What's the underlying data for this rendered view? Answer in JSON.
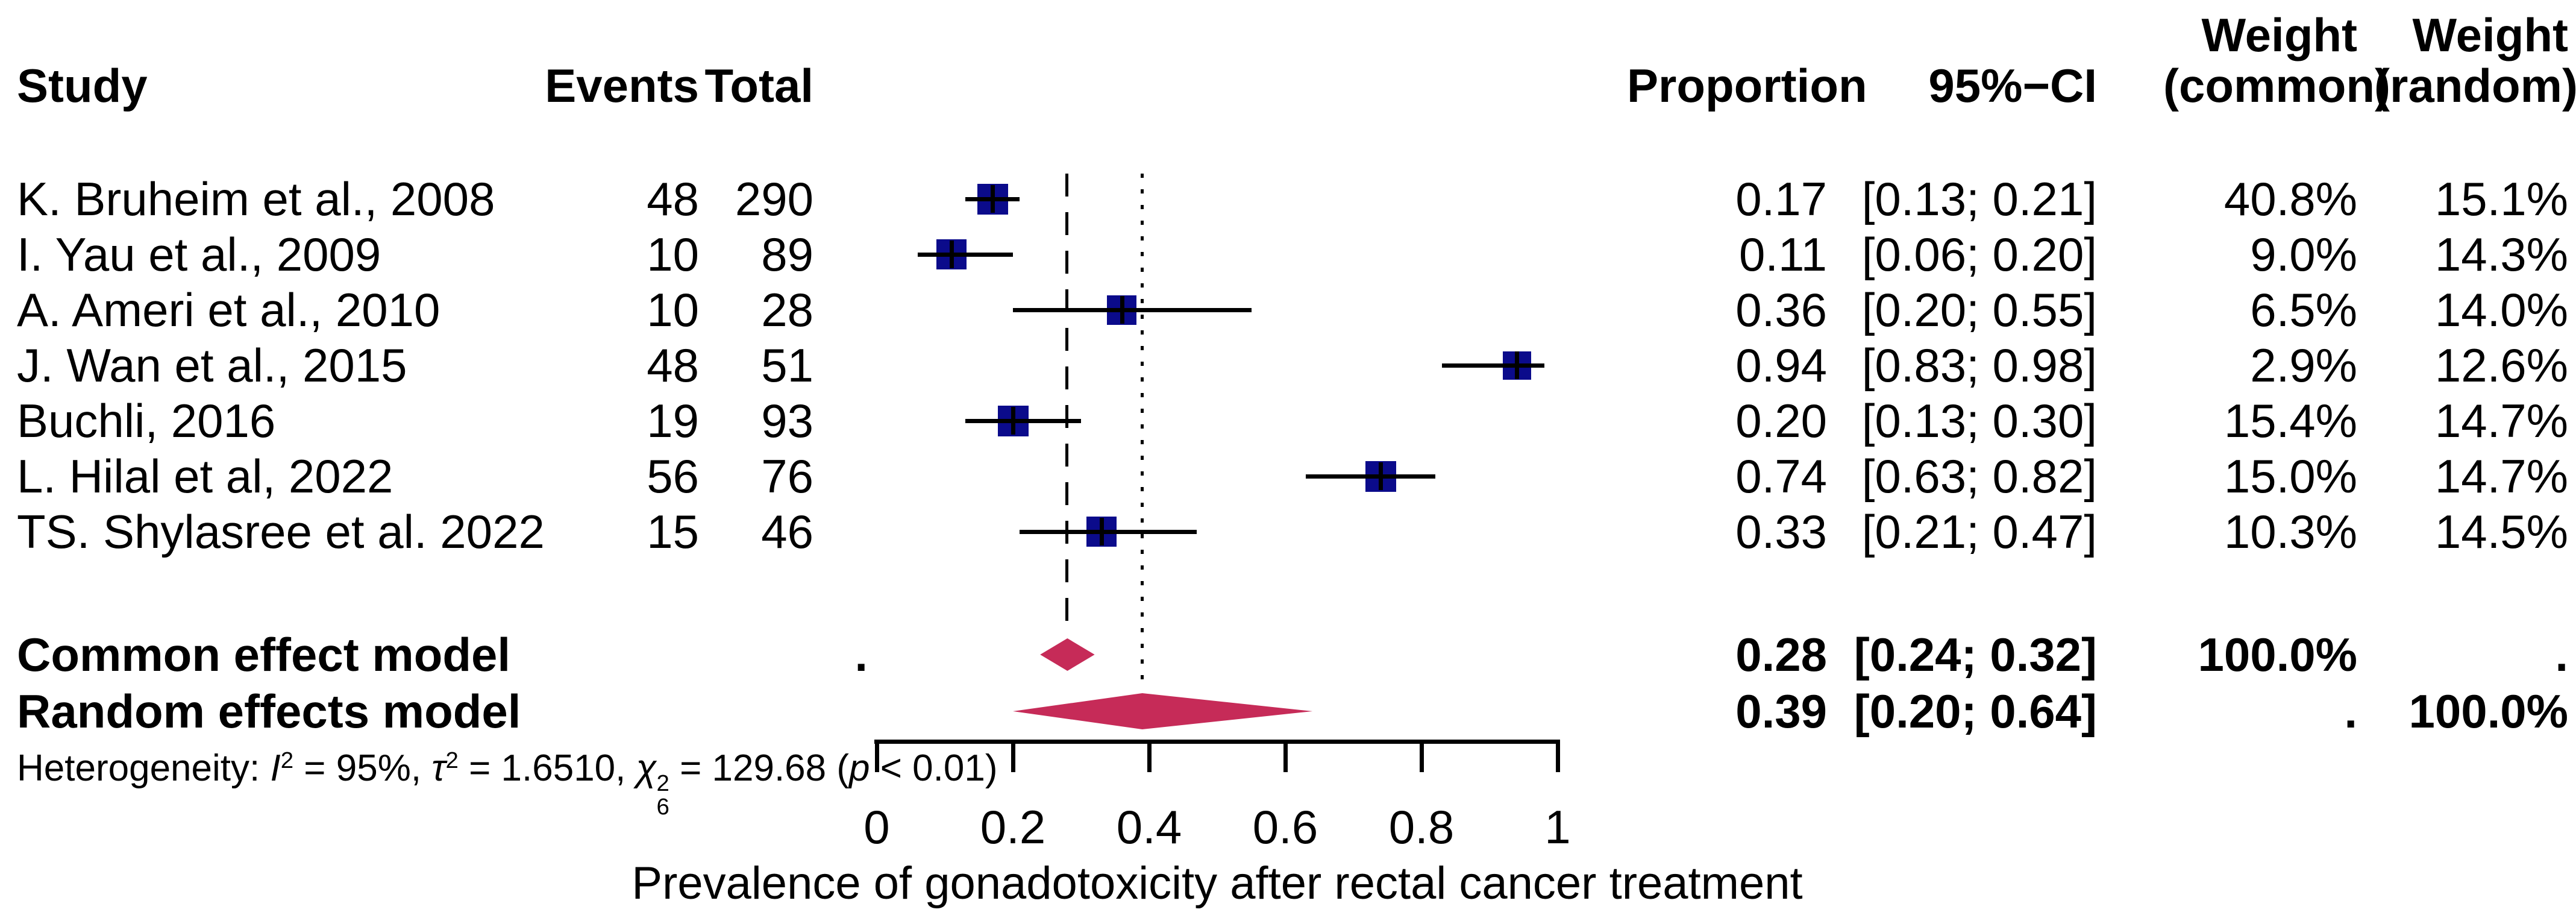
{
  "columns": {
    "study": "Study",
    "events": "Events",
    "total": "Total",
    "proportion": "Proportion",
    "ci": "95%−CI",
    "weight_common_line1": "Weight",
    "weight_common_line2": "(common)",
    "weight_random_line1": "Weight",
    "weight_random_line2": "(random)"
  },
  "rows": [
    {
      "study": "K. Bruheim et al., 2008",
      "events": "48",
      "total": "290",
      "proportion": "0.17",
      "ci": "[0.13; 0.21]",
      "weight_common": "40.8%",
      "weight_random": "15.1%"
    },
    {
      "study": "I. Yau et al., 2009",
      "events": "10",
      "total": "89",
      "proportion": "0.11",
      "ci": "[0.06; 0.20]",
      "weight_common": "9.0%",
      "weight_random": "14.3%"
    },
    {
      "study": "A. Ameri et al., 2010",
      "events": "10",
      "total": "28",
      "proportion": "0.36",
      "ci": "[0.20; 0.55]",
      "weight_common": "6.5%",
      "weight_random": "14.0%"
    },
    {
      "study": "J. Wan et al., 2015",
      "events": "48",
      "total": "51",
      "proportion": "0.94",
      "ci": "[0.83; 0.98]",
      "weight_common": "2.9%",
      "weight_random": "12.6%"
    },
    {
      "study": "Buchli, 2016",
      "events": "19",
      "total": "93",
      "proportion": "0.20",
      "ci": "[0.13; 0.30]",
      "weight_common": "15.4%",
      "weight_random": "14.7%"
    },
    {
      "study": "L. Hilal et al, 2022",
      "events": "56",
      "total": "76",
      "proportion": "0.74",
      "ci": "[0.63; 0.82]",
      "weight_common": "15.0%",
      "weight_random": "14.7%"
    },
    {
      "study": "TS. Shylasree et al. 2022",
      "events": "15",
      "total": "46",
      "proportion": "0.33",
      "ci": "[0.21; 0.47]",
      "weight_common": "10.3%",
      "weight_random": "14.5%"
    }
  ],
  "summary": {
    "common": {
      "label": "Common effect model",
      "total_dot": ".",
      "proportion": "0.28",
      "ci": "[0.24; 0.32]",
      "weight_common": "100.0%",
      "weight_random": "."
    },
    "random": {
      "label": "Random effects model",
      "proportion": "0.39",
      "ci": "[0.20; 0.64]",
      "weight_common": ".",
      "weight_random": "100.0%"
    }
  },
  "heterogeneity_parts": {
    "prefix": "Heterogeneity: ",
    "i": "I",
    "i_sup": "2",
    "seg1": " = 95%, ",
    "tau": "τ",
    "tau_sup": "2",
    "seg2": " = 1.6510, ",
    "chi": "χ",
    "chi_sup": "2",
    "chi_sub": "6",
    "seg3": " = 129.68 (",
    "p": "p",
    "seg4": " < 0.01)"
  },
  "axis": {
    "tick_labels": [
      "0",
      "0.2",
      "0.4",
      "0.6",
      "0.8",
      "1"
    ],
    "xlabel": "Prevalence of gonadotoxicity after rectal cancer treatment"
  },
  "colors": {
    "square": "#0B0B8B",
    "diamond": "#C62B58",
    "line": "#000000",
    "text": "#000000"
  },
  "chart_data": {
    "type": "forest",
    "xlabel": "Prevalence of gonadotoxicity after rectal cancer treatment",
    "xlim": [
      0,
      1
    ],
    "x_ticks": [
      0,
      0.2,
      0.4,
      0.6,
      0.8,
      1
    ],
    "studies": [
      {
        "name": "K. Bruheim et al., 2008",
        "events": 48,
        "total": 290,
        "proportion": 0.17,
        "ci": [
          0.13,
          0.21
        ],
        "weight_common": 40.8,
        "weight_random": 15.1
      },
      {
        "name": "I. Yau et al., 2009",
        "events": 10,
        "total": 89,
        "proportion": 0.11,
        "ci": [
          0.06,
          0.2
        ],
        "weight_common": 9.0,
        "weight_random": 14.3
      },
      {
        "name": "A. Ameri et al., 2010",
        "events": 10,
        "total": 28,
        "proportion": 0.36,
        "ci": [
          0.2,
          0.55
        ],
        "weight_common": 6.5,
        "weight_random": 14.0
      },
      {
        "name": "J. Wan et al., 2015",
        "events": 48,
        "total": 51,
        "proportion": 0.94,
        "ci": [
          0.83,
          0.98
        ],
        "weight_common": 2.9,
        "weight_random": 12.6
      },
      {
        "name": "Buchli, 2016",
        "events": 19,
        "total": 93,
        "proportion": 0.2,
        "ci": [
          0.13,
          0.3
        ],
        "weight_common": 15.4,
        "weight_random": 14.7
      },
      {
        "name": "L. Hilal et al, 2022",
        "events": 56,
        "total": 76,
        "proportion": 0.74,
        "ci": [
          0.63,
          0.82
        ],
        "weight_common": 15.0,
        "weight_random": 14.7
      },
      {
        "name": "TS. Shylasree et al. 2022",
        "events": 15,
        "total": 46,
        "proportion": 0.33,
        "ci": [
          0.21,
          0.47
        ],
        "weight_common": 10.3,
        "weight_random": 14.5
      }
    ],
    "common_effect": {
      "estimate": 0.28,
      "ci": [
        0.24,
        0.32
      ],
      "weight_common": 100.0
    },
    "random_effects": {
      "estimate": 0.39,
      "ci": [
        0.2,
        0.64
      ],
      "weight_random": 100.0
    },
    "heterogeneity": {
      "I2": "95%",
      "tau2": 1.651,
      "chi2": 129.68,
      "df": 6,
      "p": "< 0.01"
    }
  }
}
